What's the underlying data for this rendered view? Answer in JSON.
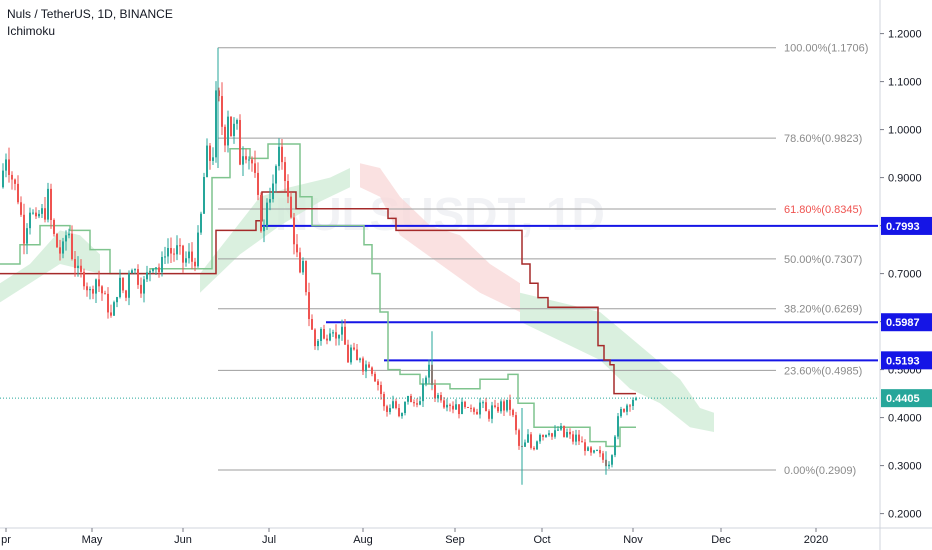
{
  "header": {
    "title": "Nuls / TetherUS, 1D, BINANCE",
    "indicator": "Ichimoku"
  },
  "watermark": "NULSUSDT, 1D",
  "colors": {
    "up": "#26a69a",
    "down": "#ef5350",
    "kijun": "#a52a2a",
    "tenkan": "#7fc48e",
    "fib": "#9e9e9e",
    "fib_highlight": "#ef5350",
    "hline": "#1515e6",
    "price_line": "#26a69a",
    "cloud_bull": "#cdebd4",
    "cloud_bear": "#f8d7d7"
  },
  "chart_data": {
    "type": "candlestick",
    "symbol": "Nuls / TetherUS",
    "interval": "1D",
    "exchange": "BINANCE",
    "x_ticks": [
      "pr",
      "May",
      "Jun",
      "Jul",
      "Aug",
      "Sep",
      "Oct",
      "Nov",
      "Dec",
      "2020"
    ],
    "y_ticks": [
      "1.2000",
      "1.1000",
      "1.0000",
      "0.9000",
      "0.8000",
      "0.7000",
      "0.6000",
      "0.5000",
      "0.4000",
      "0.3000",
      "0.2000"
    ],
    "ylim": [
      0.17,
      1.27
    ],
    "y_scale": "linear",
    "fib_levels": [
      {
        "label": "100.00%(1.1706)",
        "value": 1.1706
      },
      {
        "label": "78.60%(0.9823)",
        "value": 0.9823
      },
      {
        "label": "61.80%(0.8345)",
        "value": 0.8345
      },
      {
        "label": "50.00%(0.7307)",
        "value": 0.7307
      },
      {
        "label": "38.20%(0.6269)",
        "value": 0.6269
      },
      {
        "label": "23.60%(0.4985)",
        "value": 0.4985
      },
      {
        "label": "0.00%(0.2909)",
        "value": 0.2909
      }
    ],
    "horizontal_lines": [
      {
        "label": "0.7993",
        "value": 0.7993
      },
      {
        "label": "0.5987",
        "value": 0.5987
      },
      {
        "label": "0.5193",
        "value": 0.5193
      }
    ],
    "last_price": {
      "label": "0.4405",
      "value": 0.4405
    },
    "price_path": [
      [
        0,
        0.88
      ],
      [
        6,
        0.95
      ],
      [
        12,
        0.9
      ],
      [
        18,
        0.86
      ],
      [
        24,
        0.78
      ],
      [
        30,
        0.84
      ],
      [
        36,
        0.8
      ],
      [
        40,
        0.83
      ],
      [
        44,
        0.82
      ],
      [
        48,
        0.86
      ],
      [
        52,
        0.79
      ],
      [
        58,
        0.75
      ],
      [
        62,
        0.74
      ],
      [
        68,
        0.8
      ],
      [
        72,
        0.74
      ],
      [
        78,
        0.7
      ],
      [
        84,
        0.69
      ],
      [
        90,
        0.66
      ],
      [
        96,
        0.69
      ],
      [
        102,
        0.66
      ],
      [
        108,
        0.63
      ],
      [
        112,
        0.6
      ],
      [
        116,
        0.66
      ],
      [
        120,
        0.68
      ],
      [
        126,
        0.65
      ],
      [
        130,
        0.73
      ],
      [
        136,
        0.7
      ],
      [
        142,
        0.67
      ],
      [
        148,
        0.7
      ],
      [
        154,
        0.73
      ],
      [
        160,
        0.7
      ],
      [
        166,
        0.76
      ],
      [
        172,
        0.74
      ],
      [
        178,
        0.75
      ],
      [
        184,
        0.72
      ],
      [
        188,
        0.74
      ],
      [
        194,
        0.72
      ],
      [
        200,
        0.79
      ],
      [
        204,
        0.9
      ],
      [
        208,
        0.96
      ],
      [
        212,
        0.92
      ],
      [
        216,
        1.06
      ],
      [
        220,
        1.05
      ],
      [
        224,
        0.97
      ],
      [
        228,
        1.04
      ],
      [
        232,
        0.98
      ],
      [
        236,
        1.02
      ],
      [
        240,
        0.94
      ],
      [
        244,
        0.97
      ],
      [
        248,
        0.95
      ],
      [
        252,
        0.93
      ],
      [
        256,
        0.88
      ],
      [
        260,
        0.81
      ],
      [
        264,
        0.79
      ],
      [
        268,
        0.88
      ],
      [
        272,
        0.86
      ],
      [
        276,
        0.92
      ],
      [
        280,
        0.95
      ],
      [
        284,
        0.93
      ],
      [
        288,
        0.85
      ],
      [
        292,
        0.8
      ],
      [
        296,
        0.75
      ],
      [
        300,
        0.69
      ],
      [
        304,
        0.72
      ],
      [
        308,
        0.62
      ],
      [
        312,
        0.58
      ],
      [
        316,
        0.54
      ],
      [
        320,
        0.59
      ],
      [
        324,
        0.56
      ],
      [
        328,
        0.58
      ],
      [
        332,
        0.6
      ],
      [
        336,
        0.56
      ],
      [
        340,
        0.59
      ],
      [
        344,
        0.56
      ],
      [
        348,
        0.52
      ],
      [
        352,
        0.55
      ],
      [
        356,
        0.51
      ],
      [
        360,
        0.53
      ],
      [
        364,
        0.5
      ],
      [
        368,
        0.52
      ],
      [
        372,
        0.5
      ],
      [
        376,
        0.48
      ],
      [
        380,
        0.46
      ],
      [
        384,
        0.42
      ],
      [
        388,
        0.41
      ],
      [
        392,
        0.44
      ],
      [
        396,
        0.42
      ],
      [
        400,
        0.39
      ],
      [
        404,
        0.42
      ],
      [
        408,
        0.45
      ],
      [
        412,
        0.42
      ],
      [
        416,
        0.44
      ],
      [
        420,
        0.43
      ],
      [
        424,
        0.47
      ],
      [
        428,
        0.51
      ],
      [
        432,
        0.47
      ],
      [
        436,
        0.44
      ],
      [
        440,
        0.45
      ],
      [
        444,
        0.43
      ],
      [
        448,
        0.44
      ],
      [
        452,
        0.42
      ],
      [
        456,
        0.43
      ],
      [
        460,
        0.41
      ],
      [
        464,
        0.44
      ],
      [
        468,
        0.41
      ],
      [
        472,
        0.43
      ],
      [
        476,
        0.41
      ],
      [
        480,
        0.43
      ],
      [
        484,
        0.42
      ],
      [
        488,
        0.4
      ],
      [
        492,
        0.42
      ],
      [
        496,
        0.41
      ],
      [
        500,
        0.43
      ],
      [
        504,
        0.42
      ],
      [
        508,
        0.43
      ],
      [
        512,
        0.41
      ],
      [
        516,
        0.37
      ],
      [
        520,
        0.33
      ],
      [
        524,
        0.34
      ],
      [
        528,
        0.36
      ],
      [
        532,
        0.33
      ],
      [
        536,
        0.35
      ],
      [
        540,
        0.37
      ],
      [
        544,
        0.36
      ],
      [
        548,
        0.38
      ],
      [
        552,
        0.36
      ],
      [
        556,
        0.37
      ],
      [
        560,
        0.38
      ],
      [
        564,
        0.36
      ],
      [
        568,
        0.37
      ],
      [
        572,
        0.35
      ],
      [
        576,
        0.36
      ],
      [
        580,
        0.35
      ],
      [
        584,
        0.34
      ],
      [
        588,
        0.33
      ],
      [
        592,
        0.32
      ],
      [
        596,
        0.33
      ],
      [
        600,
        0.32
      ],
      [
        604,
        0.31
      ],
      [
        608,
        0.3
      ],
      [
        612,
        0.33
      ],
      [
        616,
        0.38
      ],
      [
        620,
        0.41
      ],
      [
        624,
        0.42
      ],
      [
        628,
        0.43
      ],
      [
        632,
        0.44
      ],
      [
        636,
        0.4405
      ]
    ],
    "kijun_sen": [
      [
        0,
        0.7
      ],
      [
        100,
        0.7
      ],
      [
        210,
        0.7
      ],
      [
        216,
        0.79
      ],
      [
        250,
        0.79
      ],
      [
        256,
        0.81
      ],
      [
        262,
        0.87
      ],
      [
        290,
        0.87
      ],
      [
        296,
        0.835
      ],
      [
        380,
        0.835
      ],
      [
        388,
        0.815
      ],
      [
        396,
        0.79
      ],
      [
        518,
        0.79
      ],
      [
        522,
        0.72
      ],
      [
        530,
        0.68
      ],
      [
        538,
        0.65
      ],
      [
        548,
        0.63
      ],
      [
        592,
        0.63
      ],
      [
        598,
        0.55
      ],
      [
        604,
        0.52
      ],
      [
        610,
        0.51
      ],
      [
        614,
        0.45
      ],
      [
        630,
        0.45
      ],
      [
        636,
        0.45
      ]
    ],
    "tenkan_sen": [
      [
        0,
        0.72
      ],
      [
        20,
        0.76
      ],
      [
        40,
        0.8
      ],
      [
        70,
        0.79
      ],
      [
        90,
        0.75
      ],
      [
        110,
        0.7
      ],
      [
        150,
        0.71
      ],
      [
        200,
        0.71
      ],
      [
        212,
        0.9
      ],
      [
        230,
        0.96
      ],
      [
        250,
        0.94
      ],
      [
        268,
        0.97
      ],
      [
        290,
        0.97
      ],
      [
        300,
        0.86
      ],
      [
        312,
        0.8
      ],
      [
        340,
        0.8
      ],
      [
        364,
        0.76
      ],
      [
        372,
        0.7
      ],
      [
        380,
        0.62
      ],
      [
        388,
        0.5
      ],
      [
        400,
        0.49
      ],
      [
        420,
        0.47
      ],
      [
        450,
        0.46
      ],
      [
        480,
        0.48
      ],
      [
        508,
        0.49
      ],
      [
        518,
        0.43
      ],
      [
        534,
        0.38
      ],
      [
        570,
        0.38
      ],
      [
        590,
        0.35
      ],
      [
        606,
        0.34
      ],
      [
        620,
        0.38
      ],
      [
        636,
        0.38
      ]
    ],
    "cloud": [
      {
        "kind": "bull",
        "points": [
          [
            0,
            0.68
          ],
          [
            30,
            0.72
          ],
          [
            60,
            0.79
          ],
          [
            80,
            0.78
          ],
          [
            100,
            0.74
          ],
          [
            100,
            0.7
          ],
          [
            60,
            0.72
          ],
          [
            30,
            0.68
          ],
          [
            0,
            0.64
          ]
        ]
      },
      {
        "kind": "bull",
        "points": [
          [
            200,
            0.7
          ],
          [
            230,
            0.78
          ],
          [
            260,
            0.86
          ],
          [
            290,
            0.88
          ],
          [
            330,
            0.9
          ],
          [
            350,
            0.92
          ],
          [
            350,
            0.88
          ],
          [
            320,
            0.85
          ],
          [
            280,
            0.8
          ],
          [
            240,
            0.74
          ],
          [
            200,
            0.66
          ]
        ]
      },
      {
        "kind": "bear",
        "points": [
          [
            360,
            0.93
          ],
          [
            380,
            0.92
          ],
          [
            400,
            0.86
          ],
          [
            430,
            0.8
          ],
          [
            460,
            0.78
          ],
          [
            490,
            0.72
          ],
          [
            520,
            0.68
          ],
          [
            520,
            0.62
          ],
          [
            480,
            0.66
          ],
          [
            440,
            0.72
          ],
          [
            400,
            0.78
          ],
          [
            380,
            0.86
          ],
          [
            360,
            0.88
          ]
        ]
      },
      {
        "kind": "bull",
        "points": [
          [
            520,
            0.66
          ],
          [
            560,
            0.64
          ],
          [
            600,
            0.62
          ],
          [
            640,
            0.55
          ],
          [
            680,
            0.48
          ],
          [
            700,
            0.42
          ],
          [
            714,
            0.41
          ],
          [
            714,
            0.37
          ],
          [
            690,
            0.38
          ],
          [
            660,
            0.43
          ],
          [
            630,
            0.46
          ],
          [
            600,
            0.52
          ],
          [
            560,
            0.56
          ],
          [
            520,
            0.6
          ]
        ]
      }
    ]
  }
}
